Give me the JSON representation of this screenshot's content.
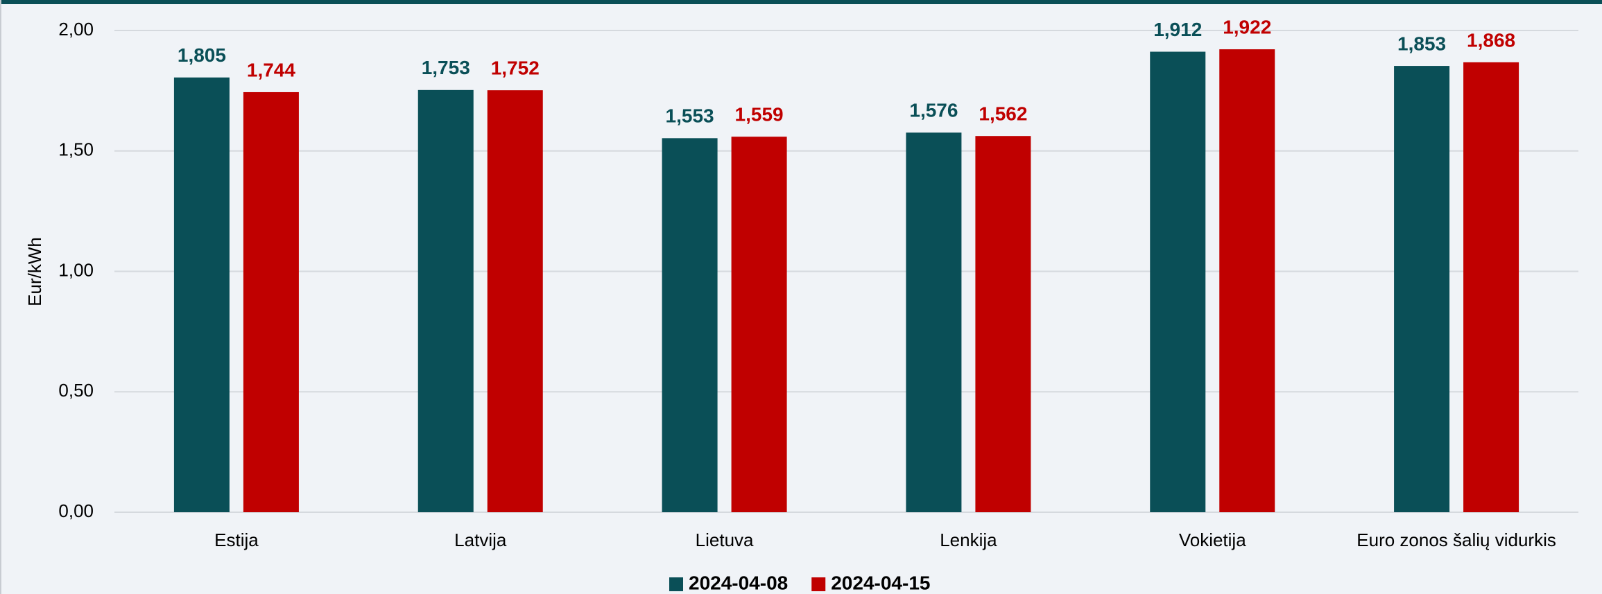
{
  "chart_data": {
    "type": "bar",
    "y_label": "Eur/kWh",
    "categories": [
      "Estija",
      "Latvija",
      "Lietuva",
      "Lenkija",
      "Vokietija",
      "Euro zonos šalių vidurkis"
    ],
    "series": [
      {
        "name": "2024-04-08",
        "color": "#0a4f57",
        "values": [
          1.805,
          1.753,
          1.553,
          1.576,
          1.912,
          1.853
        ],
        "value_labels": [
          "1,805",
          "1,753",
          "1,553",
          "1,576",
          "1,912",
          "1,853"
        ]
      },
      {
        "name": "2024-04-15",
        "color": "#c00000",
        "values": [
          1.744,
          1.752,
          1.559,
          1.562,
          1.922,
          1.868
        ],
        "value_labels": [
          "1,744",
          "1,752",
          "1,559",
          "1,562",
          "1,922",
          "1,868"
        ]
      }
    ],
    "ylim": [
      0,
      2
    ],
    "yticks": [
      {
        "value": 0,
        "label": "0,00"
      },
      {
        "value": 0.5,
        "label": "0,50"
      },
      {
        "value": 1,
        "label": "1,00"
      },
      {
        "value": 1.5,
        "label": "1,50"
      },
      {
        "value": 2,
        "label": "2,00"
      }
    ],
    "grid": true,
    "legend": "bottom"
  }
}
